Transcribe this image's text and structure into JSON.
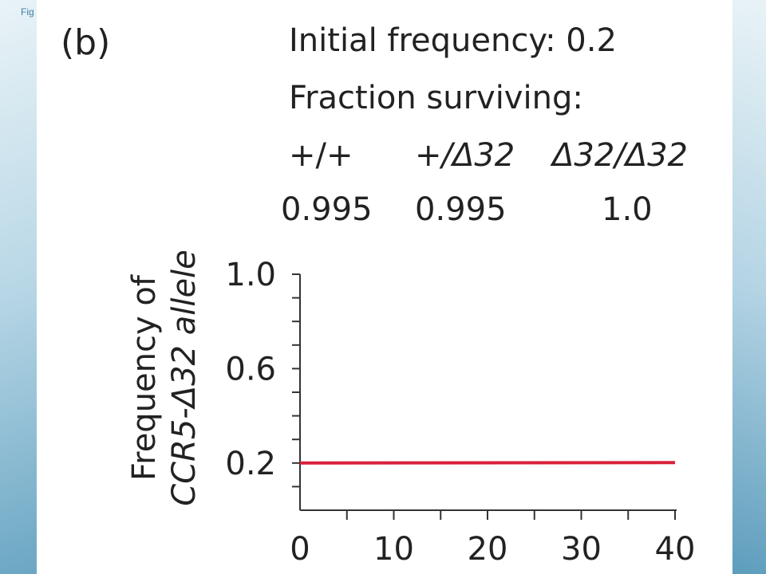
{
  "header": {
    "fig_label": "Fig",
    "panel_letter": "(b)",
    "line1": "Initial frequency: 0.2",
    "line2": "Fraction surviving:",
    "genotypes": [
      {
        "label": "+/+",
        "value": "0.995"
      },
      {
        "label": "+/Δ32",
        "value": "0.995"
      },
      {
        "label": "Δ32/Δ32",
        "value": "1.0"
      }
    ]
  },
  "chart_data": {
    "type": "line",
    "ylabel_line1": "Frequency of",
    "ylabel_line2": "CCR5-Δ32 allele",
    "xlabel": "",
    "xlim": [
      0,
      40
    ],
    "ylim": [
      0,
      1.0
    ],
    "x_ticks": [
      0,
      10,
      20,
      30,
      40
    ],
    "x_tick_labels": [
      "0",
      "10",
      "20",
      "30",
      "40"
    ],
    "y_ticks": [
      0.2,
      0.6,
      1.0
    ],
    "y_tick_labels": [
      "0.2",
      "0.6",
      "1.0"
    ],
    "x_minor_step": 5,
    "y_minor_step": 0.1,
    "series": [
      {
        "color": "#d9203a",
        "x": [
          0,
          40
        ],
        "y": [
          0.2,
          0.202
        ]
      }
    ]
  }
}
